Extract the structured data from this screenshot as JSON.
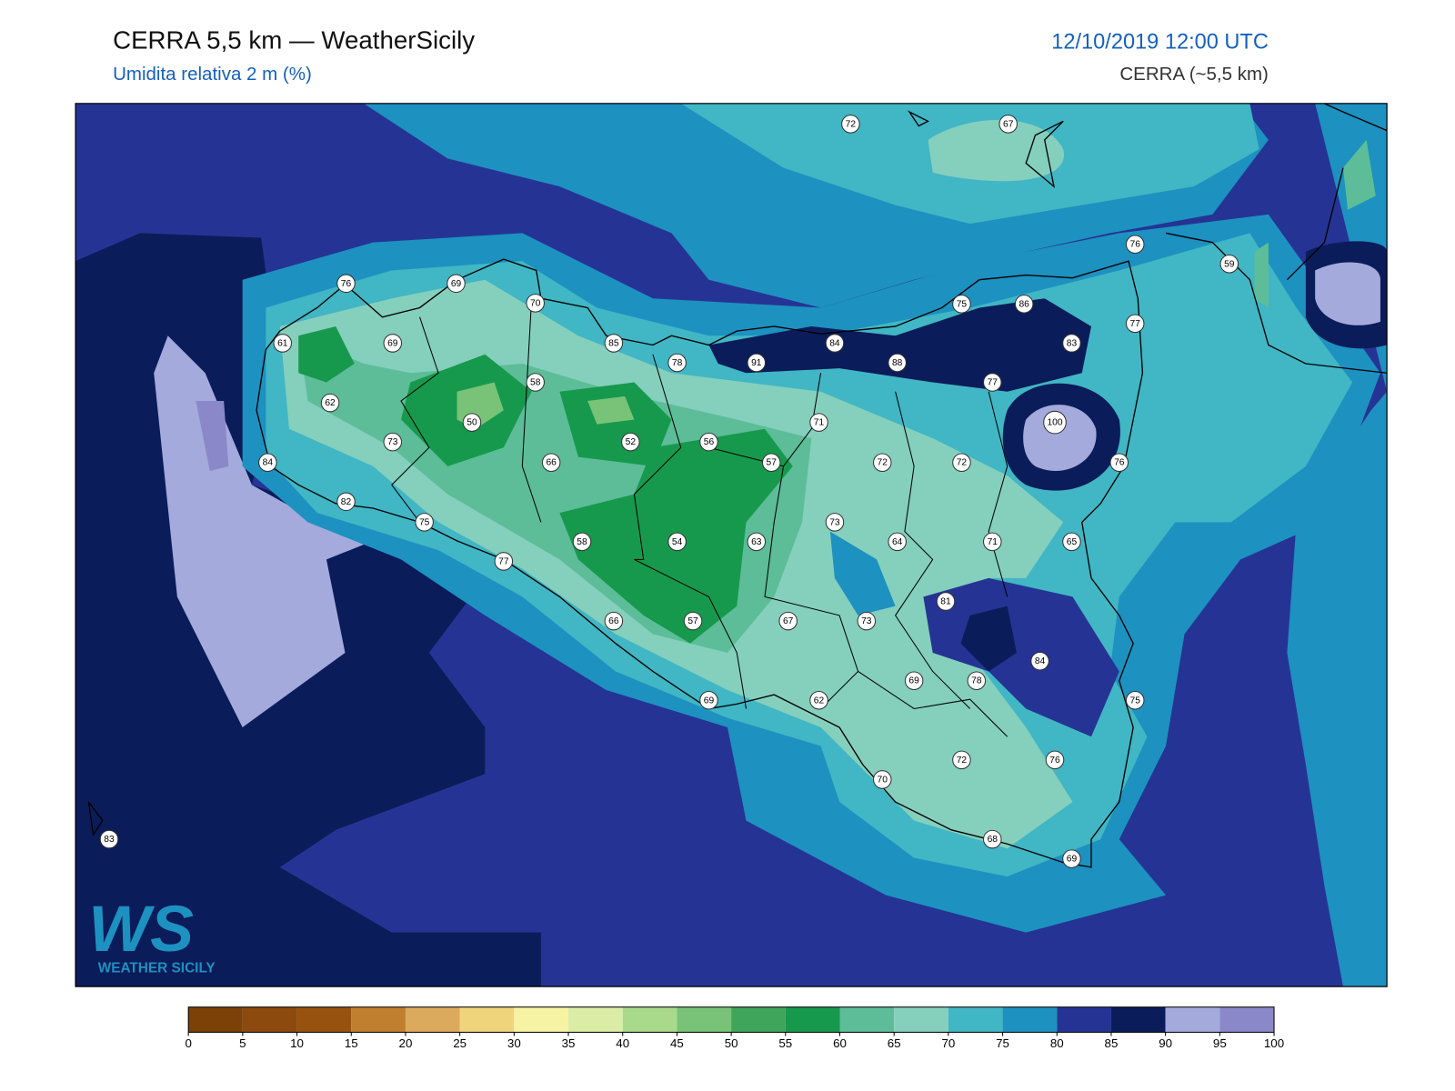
{
  "header": {
    "title": "CERRA 5,5 km — WeatherSicily",
    "subtitle": "Umidita relativa 2 m (%)",
    "date": "12/10/2019 12:00 UTC",
    "model": "CERRA (~5,5 km)"
  },
  "stations": [
    72,
    67,
    76,
    59,
    76,
    69,
    70,
    75,
    86,
    77,
    61,
    69,
    85,
    84,
    83,
    78,
    91,
    88,
    58,
    77,
    62,
    71,
    50,
    100,
    73,
    52,
    56,
    66,
    57,
    72,
    72,
    76,
    84,
    82,
    75,
    73,
    58,
    54,
    63,
    64,
    71,
    65,
    77,
    81,
    66,
    57,
    67,
    73,
    84,
    69,
    78,
    75,
    69,
    62,
    72,
    76,
    70,
    68,
    69,
    83
  ],
  "logo": {
    "mark": "WS",
    "name": "WEATHER SICILY"
  },
  "colorbar": {
    "ticks": [
      0,
      5,
      10,
      15,
      20,
      25,
      30,
      35,
      40,
      45,
      50,
      55,
      60,
      65,
      70,
      75,
      80,
      85,
      90,
      95,
      100
    ],
    "colors": [
      "#7b4106",
      "#8c4a0e",
      "#98520f",
      "#c07f2e",
      "#dcaa5c",
      "#f0d47c",
      "#f7f3a5",
      "#dbeca6",
      "#a9da8c",
      "#78c377",
      "#3ea55a",
      "#17994d",
      "#5cbd98",
      "#85cfbd",
      "#41b6c4",
      "#1d91c0",
      "#253494",
      "#0b1c5a",
      "#a4aadc",
      "#8a88c9"
    ]
  }
}
